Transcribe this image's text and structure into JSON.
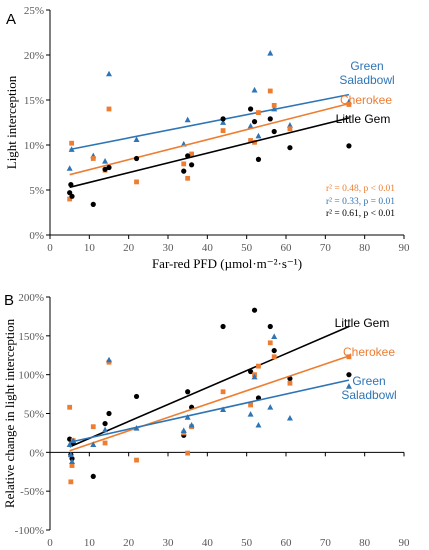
{
  "chart_data": [
    {
      "type": "scatter",
      "panel_label": "A",
      "xlabel": "Far-red PFD (µmol·m⁻²·s⁻¹)",
      "ylabel": "Light interception",
      "xlim": [
        0,
        90
      ],
      "ylim": [
        0,
        25
      ],
      "x_ticks": [
        "0",
        "10",
        "20",
        "30",
        "40",
        "50",
        "60",
        "70",
        "80",
        "90"
      ],
      "y_ticks": [
        "0%",
        "5%",
        "10%",
        "15%",
        "20%",
        "25%"
      ],
      "grid": false,
      "series": [
        {
          "name": "Green Saladbowl",
          "color": "#2e75b6",
          "marker": "triangle",
          "label_lines": [
            "Green",
            "Saladbowl"
          ],
          "points": [
            [
              5,
              7.4
            ],
            [
              5.5,
              9.5
            ],
            [
              11,
              8.8
            ],
            [
              14,
              8.2
            ],
            [
              15,
              17.9
            ],
            [
              22,
              10.6
            ],
            [
              34,
              10.1
            ],
            [
              35,
              12.8
            ],
            [
              44,
              12.5
            ],
            [
              51,
              12.1
            ],
            [
              52,
              16.1
            ],
            [
              53,
              11.0
            ],
            [
              56,
              20.2
            ],
            [
              57,
              14.0
            ],
            [
              61,
              12.2
            ],
            [
              76,
              14.8
            ]
          ],
          "fit": [
            [
              5,
              9.5
            ],
            [
              76,
              15.6
            ]
          ]
        },
        {
          "name": "Cherokee",
          "color": "#ed7d31",
          "marker": "square",
          "label_lines": [
            "Cherokee"
          ],
          "points": [
            [
              5,
              4.0
            ],
            [
              5.5,
              10.2
            ],
            [
              11,
              8.5
            ],
            [
              14,
              7.2
            ],
            [
              15,
              14.0
            ],
            [
              22,
              5.9
            ],
            [
              34,
              7.9
            ],
            [
              35,
              6.3
            ],
            [
              36,
              9.0
            ],
            [
              44,
              11.6
            ],
            [
              51,
              10.5
            ],
            [
              52,
              10.3
            ],
            [
              53,
              13.6
            ],
            [
              56,
              16.0
            ],
            [
              57,
              14.4
            ],
            [
              61,
              11.8
            ],
            [
              76,
              14.5
            ]
          ],
          "fit": [
            [
              5,
              6.7
            ],
            [
              76,
              14.6
            ]
          ]
        },
        {
          "name": "Little Gem",
          "color": "#000000",
          "marker": "circle",
          "label_lines": [
            "Little Gem"
          ],
          "points": [
            [
              5,
              4.7
            ],
            [
              5.3,
              5.6
            ],
            [
              5.6,
              4.3
            ],
            [
              11,
              3.4
            ],
            [
              14,
              7.3
            ],
            [
              15,
              7.5
            ],
            [
              22,
              8.5
            ],
            [
              34,
              7.1
            ],
            [
              35,
              8.8
            ],
            [
              36,
              7.8
            ],
            [
              44,
              12.9
            ],
            [
              51,
              14.0
            ],
            [
              52,
              12.6
            ],
            [
              53,
              8.4
            ],
            [
              56,
              12.9
            ],
            [
              57,
              11.5
            ],
            [
              61,
              9.7
            ],
            [
              76,
              9.9
            ]
          ],
          "fit": [
            [
              5,
              5.3
            ],
            [
              76,
              13.0
            ]
          ]
        }
      ],
      "stats": [
        "r² = 0.48, p < 0.01",
        "r² = 0.33, p = 0.01",
        "r² = 0.61, p < 0.01"
      ]
    },
    {
      "type": "scatter",
      "panel_label": "B",
      "xlabel": "Far-red PFD (µmol·m⁻²·s⁻¹)",
      "ylabel": "Relative change  in light interception",
      "xlim": [
        0,
        90
      ],
      "ylim": [
        -100,
        200
      ],
      "x_ticks": [
        "0",
        "10",
        "20",
        "30",
        "40",
        "50",
        "60",
        "70",
        "80",
        "90"
      ],
      "y_ticks": [
        "-100%",
        "-50%",
        "0%",
        "50%",
        "100%",
        "150%",
        "200%"
      ],
      "grid": false,
      "series": [
        {
          "name": "Little Gem",
          "color": "#000000",
          "marker": "circle",
          "label_lines": [
            "Little Gem"
          ],
          "points": [
            [
              5,
              17
            ],
            [
              5.3,
              -3
            ],
            [
              5.6,
              -8
            ],
            [
              5.9,
              12
            ],
            [
              11,
              -31
            ],
            [
              14,
              37
            ],
            [
              15,
              50
            ],
            [
              22,
              72
            ],
            [
              34,
              22
            ],
            [
              35,
              78
            ],
            [
              36,
              58
            ],
            [
              44,
              162
            ],
            [
              51,
              104
            ],
            [
              52,
              183
            ],
            [
              53,
              70
            ],
            [
              56,
              162
            ],
            [
              57,
              131
            ],
            [
              61,
              95
            ],
            [
              76,
              100
            ]
          ],
          "fit": [
            [
              5,
              7
            ],
            [
              76,
              162
            ]
          ]
        },
        {
          "name": "Cherokee",
          "color": "#ed7d31",
          "marker": "square",
          "label_lines": [
            "Cherokee"
          ],
          "points": [
            [
              5,
              58
            ],
            [
              5.3,
              -38
            ],
            [
              5.6,
              -17
            ],
            [
              5.9,
              15
            ],
            [
              11,
              33
            ],
            [
              14,
              12
            ],
            [
              15,
              116
            ],
            [
              22,
              -10
            ],
            [
              34,
              25
            ],
            [
              35,
              -1
            ],
            [
              36,
              33
            ],
            [
              44,
              78
            ],
            [
              51,
              61
            ],
            [
              52,
              100
            ],
            [
              53,
              111
            ],
            [
              56,
              141
            ],
            [
              57,
              123
            ],
            [
              61,
              89
            ],
            [
              76,
              123
            ]
          ],
          "fit": [
            [
              5,
              2
            ],
            [
              76,
              124
            ]
          ]
        },
        {
          "name": "Green Saladbowl",
          "color": "#2e75b6",
          "marker": "triangle",
          "label_lines": [
            "Green",
            "Saladbowl"
          ],
          "points": [
            [
              5,
              10
            ],
            [
              5.3,
              -3
            ],
            [
              5.6,
              -12
            ],
            [
              5.9,
              15
            ],
            [
              11,
              10
            ],
            [
              14,
              29
            ],
            [
              15,
              119
            ],
            [
              22,
              31
            ],
            [
              34,
              28
            ],
            [
              35,
              45
            ],
            [
              36,
              35
            ],
            [
              44,
              55
            ],
            [
              51,
              49
            ],
            [
              52,
              97
            ],
            [
              53,
              35
            ],
            [
              56,
              58
            ],
            [
              57,
              149
            ],
            [
              61,
              44
            ],
            [
              76,
              85
            ]
          ],
          "fit": [
            [
              5,
              13
            ],
            [
              76,
              93
            ]
          ]
        }
      ]
    }
  ]
}
